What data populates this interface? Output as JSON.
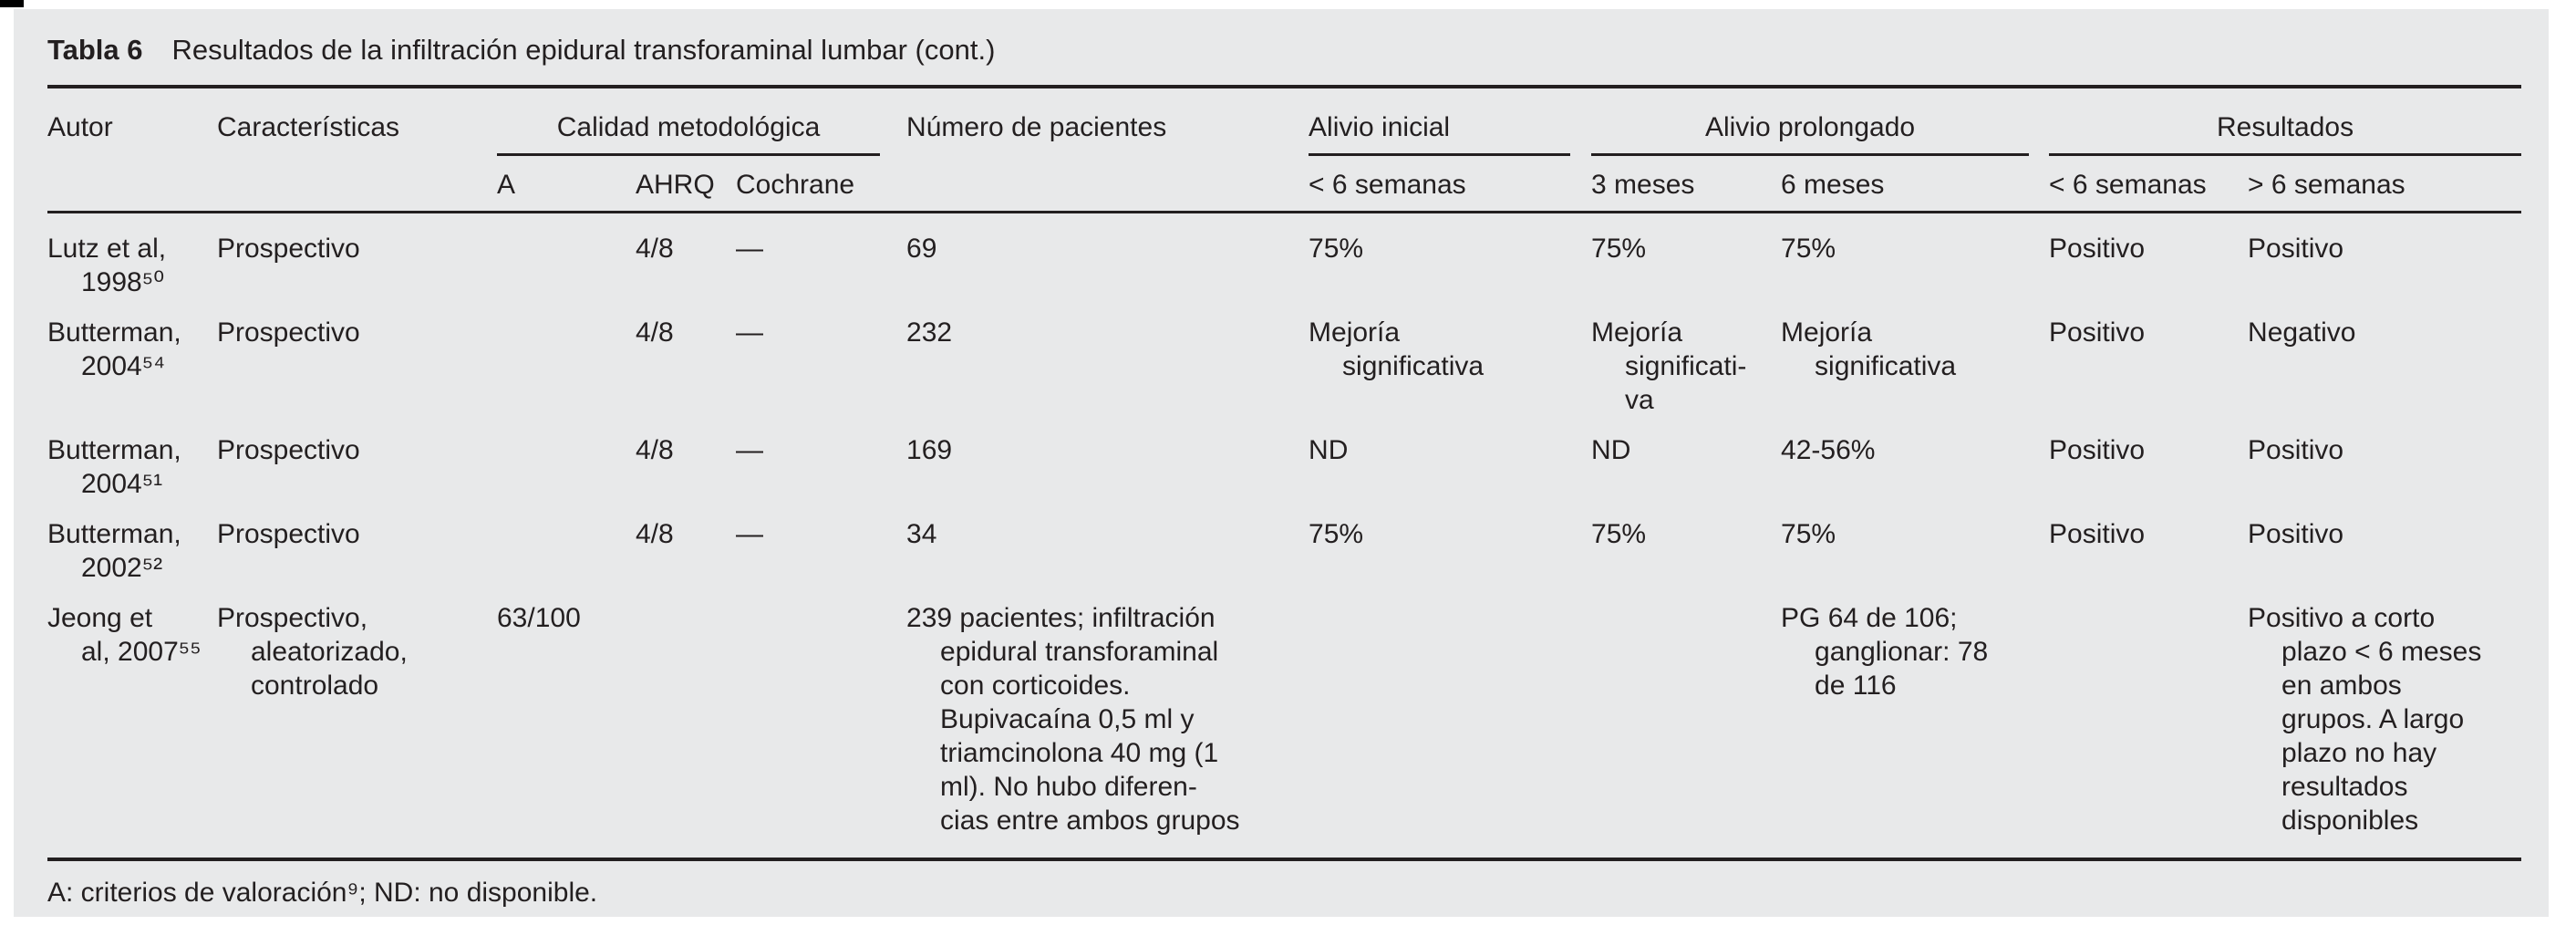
{
  "title": {
    "label": "Tabla 6",
    "text": "Resultados de la infiltración epidural transforaminal lumbar (cont.)"
  },
  "columns": {
    "autor": "Autor",
    "caracteristicas": "Características",
    "calidad": "Calidad metodológica",
    "calidad_a": "A",
    "calidad_ahrq": "AHRQ",
    "calidad_cochrane": "Cochrane",
    "pacientes": "Número de pacientes",
    "alivio_inicial": "Alivio inicial",
    "alivio_inicial_sub": "< 6 semanas",
    "alivio_prolongado": "Alivio prolongado",
    "prolongado_3m": "3 meses",
    "prolongado_6m": "6 meses",
    "resultados": "Resultados",
    "resultados_corto": "< 6 semanas",
    "resultados_largo": "> 6 semanas"
  },
  "rows": [
    {
      "autor": "Lutz et al,\n1998⁵⁰",
      "caracteristicas": "Prospectivo",
      "a": "",
      "ahrq": "4/8",
      "cochrane": "—",
      "pacientes": "69",
      "alivio_inicial": "75%",
      "tres_meses": "75%",
      "seis_meses": "75%",
      "res_corto": "Positivo",
      "res_largo": "Positivo"
    },
    {
      "autor": "Butterman,\n2004⁵⁴",
      "caracteristicas": "Prospectivo",
      "a": "",
      "ahrq": "4/8",
      "cochrane": "—",
      "pacientes": "232",
      "alivio_inicial": "Mejoría\nsignificativa",
      "tres_meses": "Mejoría\nsignificati-\nva",
      "seis_meses": "Mejoría\nsignificativa",
      "res_corto": "Positivo",
      "res_largo": "Negativo"
    },
    {
      "autor": "Butterman,\n2004⁵¹",
      "caracteristicas": "Prospectivo",
      "a": "",
      "ahrq": "4/8",
      "cochrane": "—",
      "pacientes": "169",
      "alivio_inicial": "ND",
      "tres_meses": "ND",
      "seis_meses": "42-56%",
      "res_corto": "Positivo",
      "res_largo": "Positivo"
    },
    {
      "autor": "Butterman,\n2002⁵²",
      "caracteristicas": "Prospectivo",
      "a": "",
      "ahrq": "4/8",
      "cochrane": "—",
      "pacientes": "34",
      "alivio_inicial": "75%",
      "tres_meses": "75%",
      "seis_meses": "75%",
      "res_corto": "Positivo",
      "res_largo": "Positivo"
    },
    {
      "autor": "Jeong et\nal, 2007⁵⁵",
      "caracteristicas": "Prospectivo,\naleatorizado,\ncontrolado",
      "a": "63/100",
      "ahrq": "",
      "cochrane": "",
      "pacientes": "239 pacientes; infiltración\nepidural transforaminal\ncon corticoides.\nBupivacaína 0,5 ml y\ntriamcinolona 40 mg (1\nml). No hubo diferen-\ncias entre ambos grupos",
      "alivio_inicial": "",
      "tres_meses": "",
      "seis_meses": "PG 64 de 106;\nganglionar: 78\nde 116",
      "res_corto": "",
      "res_largo": "Positivo a corto\nplazo < 6 meses\nen ambos\ngrupos. A largo\nplazo no hay\nresultados\ndisponibles"
    }
  ],
  "footnote": "A: criterios de valoración⁹; ND: no disponible."
}
